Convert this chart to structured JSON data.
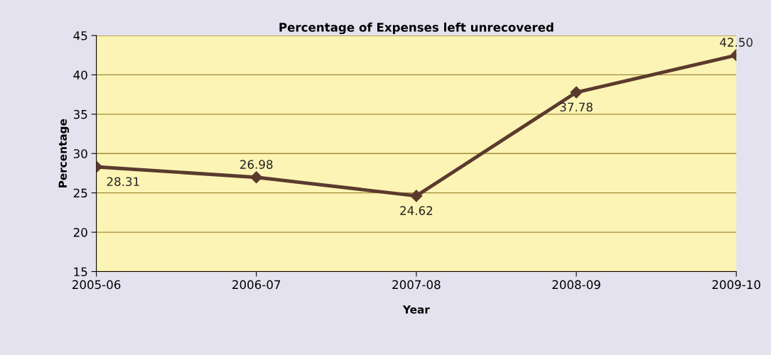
{
  "chart_data": {
    "type": "line",
    "title": "Percentage of Expenses left unrecovered",
    "xlabel": "Year",
    "ylabel": "Percentage",
    "categories": [
      "2005-06",
      "2006-07",
      "2007-08",
      "2008-09",
      "2009-10"
    ],
    "series": [
      {
        "color": "#5b3a2e",
        "values": [
          28.31,
          26.98,
          24.62,
          37.78,
          42.5
        ],
        "value_labels": [
          "28.31",
          "26.98",
          "24.62",
          "37.78",
          "42.50"
        ]
      }
    ],
    "ylim": [
      15,
      45
    ],
    "yticks": [
      15,
      20,
      25,
      30,
      35,
      40,
      45
    ],
    "grid": "y",
    "marker": "diamond",
    "line_style": "solid"
  }
}
